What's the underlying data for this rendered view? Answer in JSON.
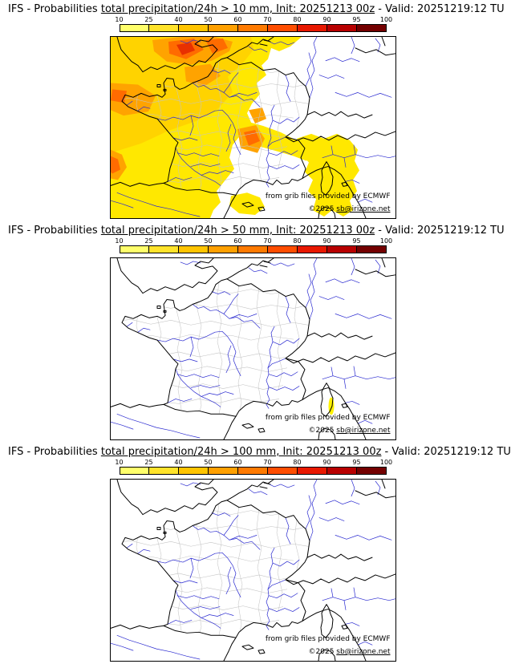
{
  "panels": [
    {
      "threshold": "10 mm",
      "title_prefix": "IFS - Probabilities ",
      "title_link": "total precipitation/24h > 10 mm, Init: 20251213 00z",
      "title_suffix": " - Valid: 20251219:12 TU"
    },
    {
      "threshold": "50 mm",
      "title_prefix": "IFS - Probabilities ",
      "title_link": "total precipitation/24h > 50 mm, Init: 20251213 00z",
      "title_suffix": " - Valid: 20251219:12 TU"
    },
    {
      "threshold": "100 mm",
      "title_prefix": "IFS - Probabilities ",
      "title_link": "total precipitation/24h > 100 mm, Init: 20251213 00z",
      "title_suffix": " - Valid: 20251219:12 TU"
    }
  ],
  "colorbar": {
    "labels": [
      "10",
      "25",
      "40",
      "50",
      "60",
      "70",
      "80",
      "90",
      "95",
      "100"
    ],
    "colors": [
      "#FFFF6B",
      "#FFE32B",
      "#FFC400",
      "#FFA000",
      "#FF7A00",
      "#FF4D00",
      "#E81800",
      "#B80000",
      "#740000"
    ]
  },
  "credits": {
    "line1": "from grib files provided by ECMWF",
    "line2_prefix": "©2025 ",
    "line2_link": "sb@irizone.net"
  },
  "map_colors": {
    "coast": "#000000",
    "rivers": "#2A2AD0",
    "departments": "#C4C4C4",
    "prob_yellow": "#FFE800",
    "prob_gold": "#FFD300",
    "prob_orange": "#FFA300",
    "prob_deep_orange": "#FF6B00",
    "prob_red": "#E83000",
    "spot_50mm": "#FFF200"
  }
}
